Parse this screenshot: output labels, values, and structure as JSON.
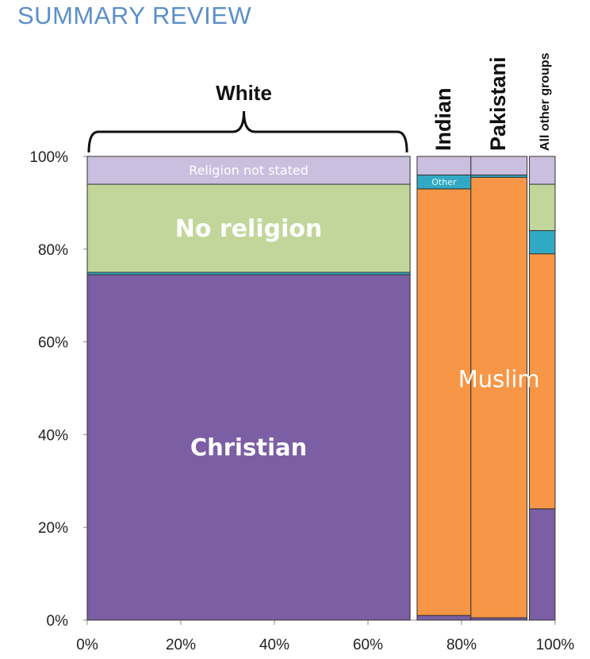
{
  "header": {
    "title": "SUMMARY REVIEW"
  },
  "colors": {
    "Christian": "#7b5ea3",
    "No religion": "#c2d69b",
    "Religion not stated": "#cbbfe0",
    "Muslim": "#f79646",
    "Other": "#31a9c4",
    "Sikh": "#2f8c9e"
  },
  "chart_data": {
    "type": "bar",
    "subtype": "marimekko",
    "title": "",
    "xlabel": "",
    "ylabel": "",
    "x_ticks": [
      "0%",
      "20%",
      "40%",
      "60%",
      "80%",
      "100%"
    ],
    "y_ticks": [
      "0%",
      "20%",
      "40%",
      "60%",
      "80%",
      "100%"
    ],
    "xlim": [
      0,
      100
    ],
    "ylim": [
      0,
      100
    ],
    "groups": [
      {
        "name": "White",
        "x_start": 0,
        "x_end": 69,
        "segments": [
          {
            "category": "Christian",
            "start": 0,
            "end": 74.5,
            "label": "Christian"
          },
          {
            "category": "Other",
            "start": 74.5,
            "end": 75,
            "label": ""
          },
          {
            "category": "No religion",
            "start": 75,
            "end": 94,
            "label": "No religion"
          },
          {
            "category": "Religion not stated",
            "start": 94,
            "end": 100,
            "label": "Religion not stated"
          }
        ]
      },
      {
        "name": "Indian",
        "x_start": 70.5,
        "x_end": 82,
        "segments": [
          {
            "category": "Christian",
            "start": 0,
            "end": 1,
            "label": ""
          },
          {
            "category": "Muslim",
            "start": 1,
            "end": 93,
            "label": ""
          },
          {
            "category": "Other",
            "start": 93,
            "end": 96,
            "label": "Other"
          },
          {
            "category": "Religion not stated",
            "start": 96,
            "end": 100,
            "label": ""
          }
        ]
      },
      {
        "name": "Pakistani",
        "x_start": 82,
        "x_end": 94,
        "segments": [
          {
            "category": "Christian",
            "start": 0,
            "end": 0.5,
            "label": ""
          },
          {
            "category": "Muslim",
            "start": 0.5,
            "end": 95.5,
            "label": ""
          },
          {
            "category": "Other",
            "start": 95.5,
            "end": 96,
            "label": ""
          },
          {
            "category": "Religion not stated",
            "start": 96,
            "end": 100,
            "label": ""
          }
        ]
      },
      {
        "name": "All other groups",
        "x_start": 94.5,
        "x_end": 100,
        "segments": [
          {
            "category": "Christian",
            "start": 0,
            "end": 24,
            "label": ""
          },
          {
            "category": "Muslim",
            "start": 24,
            "end": 79,
            "label": ""
          },
          {
            "category": "Other",
            "start": 79,
            "end": 84,
            "label": ""
          },
          {
            "category": "No religion",
            "start": 84,
            "end": 94,
            "label": ""
          },
          {
            "category": "Religion not stated",
            "start": 94,
            "end": 100,
            "label": ""
          }
        ]
      }
    ],
    "annotations": [
      {
        "text": "Muslim",
        "x": 88,
        "y": 52
      }
    ],
    "grid": false,
    "legend": "none"
  }
}
